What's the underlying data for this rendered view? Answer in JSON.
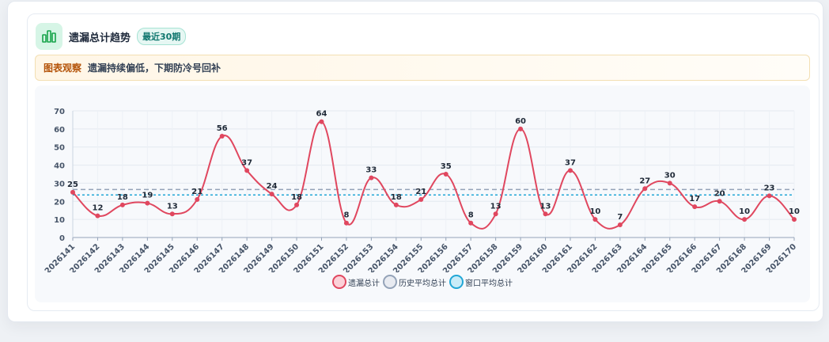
{
  "header": {
    "title": "遗漏总计趋势",
    "badge": "最近30期"
  },
  "observation": {
    "label": "图表观察",
    "text": "遗漏持续偏低，下期防冷号回补"
  },
  "colors": {
    "series_line": "#e0475f",
    "history_avg": "#94a3b8",
    "window_avg": "#22a7d6",
    "icon": "#16a34a"
  },
  "legend": {
    "items": [
      {
        "label": "遗漏总计",
        "fill": "#fbd1d8",
        "stroke": "#e0475f"
      },
      {
        "label": "历史平均总计",
        "fill": "#e8ebf1",
        "stroke": "#94a3b8"
      },
      {
        "label": "窗口平均总计",
        "fill": "#c9ecf8",
        "stroke": "#22a7d6"
      }
    ]
  },
  "chart_data": {
    "type": "line",
    "categories": [
      "2026141",
      "2026142",
      "2026143",
      "2026144",
      "2026145",
      "2026146",
      "2026147",
      "2026148",
      "2026149",
      "2026150",
      "2026151",
      "2026152",
      "2026153",
      "2026154",
      "2026155",
      "2026156",
      "2026157",
      "2026158",
      "2026159",
      "2026160",
      "2026161",
      "2026162",
      "2026163",
      "2026164",
      "2026165",
      "2026166",
      "2026167",
      "2026168",
      "2026169",
      "2026170"
    ],
    "series": [
      {
        "name": "遗漏总计",
        "values": [
          25,
          12,
          18,
          19,
          13,
          21,
          56,
          37,
          24,
          18,
          64,
          8,
          33,
          18,
          21,
          35,
          8,
          13,
          60,
          13,
          37,
          10,
          7,
          27,
          30,
          17,
          20,
          10,
          23,
          10
        ]
      }
    ],
    "history_average": 26.5,
    "window_average": 23.5,
    "ylim": [
      0,
      70
    ],
    "yticks": [
      0,
      10,
      20,
      30,
      40,
      50,
      60,
      70
    ],
    "grid": true,
    "legend_position": "bottom"
  }
}
